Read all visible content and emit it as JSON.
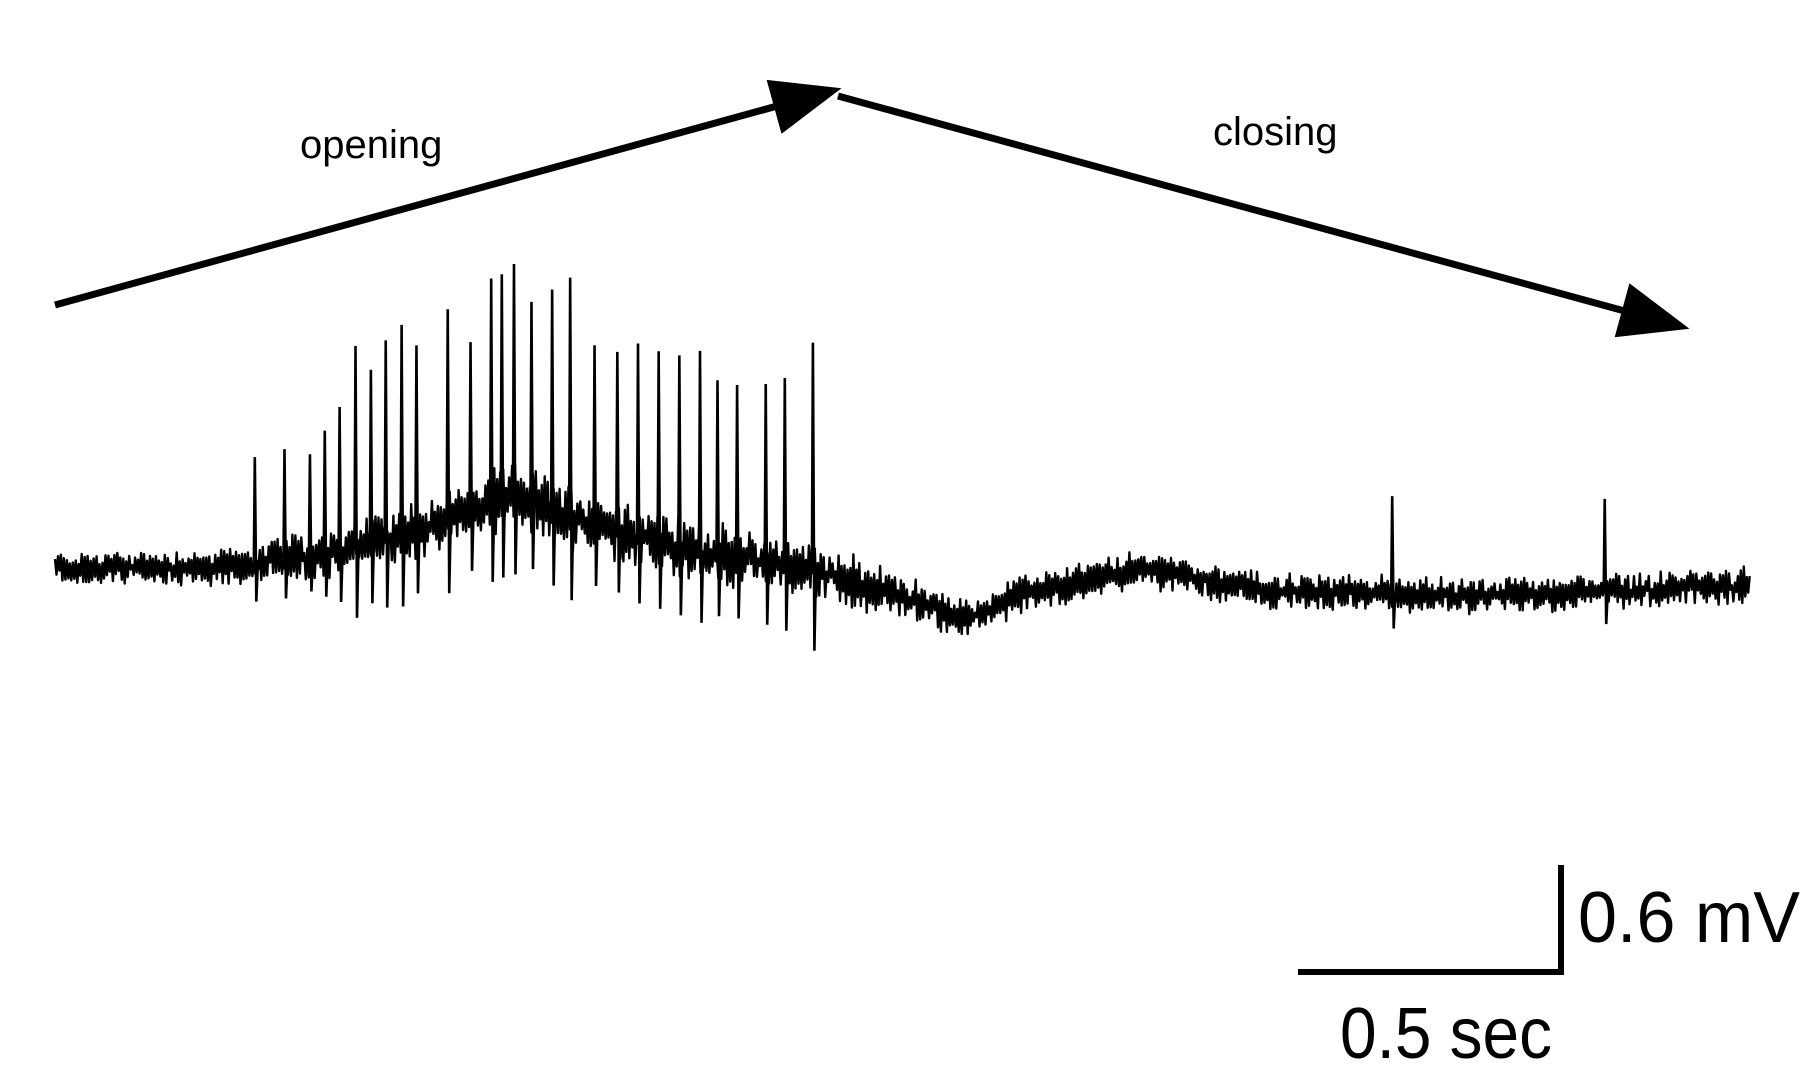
{
  "chart_data": {
    "type": "line",
    "title": "",
    "xlabel": "",
    "ylabel": "",
    "colors": {
      "trace": "#000000",
      "background": "#ffffff"
    },
    "grid": false,
    "axes_visible": false,
    "xlim_sec": [
      0,
      3.2
    ],
    "annotations": [
      {
        "text": "opening",
        "arrow": "rising",
        "from_sec": 0,
        "to_sec": 1.47
      },
      {
        "text": "closing",
        "arrow": "falling",
        "from_sec": 1.48,
        "to_sec": 3.07
      }
    ],
    "scale_bars": {
      "time": {
        "value": 0.5,
        "label": "0.5 sec"
      },
      "voltage": {
        "value": 0.6,
        "label": "0.6 mV"
      }
    },
    "baseline_mV": {
      "t": [
        0,
        0.329,
        0.546,
        0.762,
        0.87,
        0.97,
        1.196,
        1.412,
        1.629,
        1.715,
        1.845,
        2.062,
        2.278,
        2.711,
        3.201
      ],
      "v": [
        0,
        0,
        0.097,
        0.29,
        0.42,
        0.29,
        0.097,
        0,
        -0.19,
        -0.29,
        -0.13,
        0,
        -0.13,
        -0.16,
        -0.097
      ]
    },
    "noise_amplitude_mV": {
      "t": [
        0,
        0.35,
        0.6,
        1.0,
        1.45,
        1.7,
        3.2
      ],
      "v": [
        0.13,
        0.17,
        0.24,
        0.27,
        0.24,
        0.16,
        0.15
      ]
    },
    "spikes": {
      "t_sec": [
        0.377,
        0.433,
        0.481,
        0.509,
        0.537,
        0.567,
        0.596,
        0.624,
        0.654,
        0.682,
        0.741,
        0.784,
        0.823,
        0.843,
        0.866,
        0.899,
        0.938,
        0.972,
        1.018,
        1.061,
        1.1,
        1.139,
        1.178,
        1.217,
        1.25,
        1.287,
        1.341,
        1.377,
        1.43,
        2.523,
        2.924
      ],
      "amplitude_mV": [
        0.6,
        0.62,
        0.57,
        0.69,
        0.81,
        1.13,
        0.97,
        1.11,
        1.17,
        1.03,
        1.18,
        0.95,
        1.26,
        1.26,
        1.29,
        1.11,
        1.23,
        1.34,
        1.0,
        1.0,
        1.08,
        1.07,
        1.08,
        1.13,
        0.98,
        0.97,
        1.0,
        1.05,
        1.28,
        0.55,
        0.52
      ]
    }
  }
}
